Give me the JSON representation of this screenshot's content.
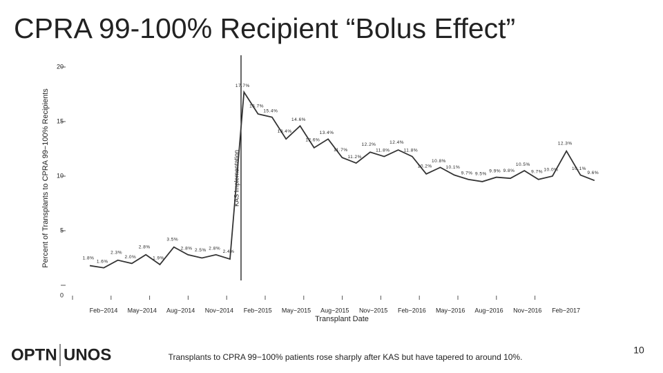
{
  "chart_data": {
    "type": "line",
    "title": "CPRA 99-100% Recipient “Bolus Effect”",
    "y_label": "Percent of Transplants to CPRA 99−100% Recipients",
    "x_label": "Transplant Date",
    "annotation": "KAS Implementation",
    "categories": [
      null,
      "Feb−2014",
      null,
      null,
      "May−2014",
      null,
      null,
      "Aug−2014",
      null,
      null,
      "Nov−2014",
      null,
      null,
      "Feb−2015",
      null,
      null,
      "May−2015",
      null,
      null,
      "Aug−2015",
      null,
      null,
      "Nov−2015",
      null,
      null,
      "Feb−2016",
      null,
      null,
      "May−2016",
      null,
      null,
      "Aug−2016",
      null,
      null,
      "Nov−2016",
      null,
      null,
      "Feb−2017"
    ],
    "values": [
      1.8,
      1.6,
      2.3,
      2.0,
      2.8,
      1.9,
      3.5,
      2.8,
      2.5,
      2.8,
      2.4,
      17.7,
      15.7,
      15.4,
      13.4,
      14.6,
      12.6,
      13.4,
      11.7,
      11.2,
      12.2,
      11.8,
      12.4,
      11.8,
      10.2,
      10.8,
      10.1,
      9.7,
      9.5,
      9.9,
      9.8,
      10.5,
      9.7,
      10.0,
      12.3,
      10.1,
      9.6,
      null
    ],
    "value_labels": [
      "1.8%",
      "1.6%",
      "2.3%",
      "2.0%",
      "2.8%",
      "1.9%",
      "3.5%",
      "2.8%",
      "2.5%",
      "2.8%",
      "2.4%",
      "17.7%",
      "15.7%",
      "15.4%",
      "13.4%",
      "14.6%",
      "12.6%",
      "13.4%",
      "11.7%",
      "11.2%",
      "12.2%",
      "11.8%",
      "12.4%",
      "11.8%",
      "10.2%",
      "10.8%",
      "10.1%",
      "9.7%",
      "9.5%",
      "9.9%",
      "9.8%",
      "10.5%",
      "9.7%",
      "10.0%",
      "12.3%",
      "10.1%",
      "9.6%",
      null
    ],
    "color": "#333333",
    "ylim": [
      0,
      20
    ],
    "yticks": [
      0,
      5,
      10,
      15,
      20
    ]
  },
  "footer": {
    "caption": "Transplants to CPRA 99−100% patients rose sharply after KAS but have tapered to around 10%.",
    "page": "10"
  },
  "logo": [
    "OPTN",
    "UNOS"
  ]
}
